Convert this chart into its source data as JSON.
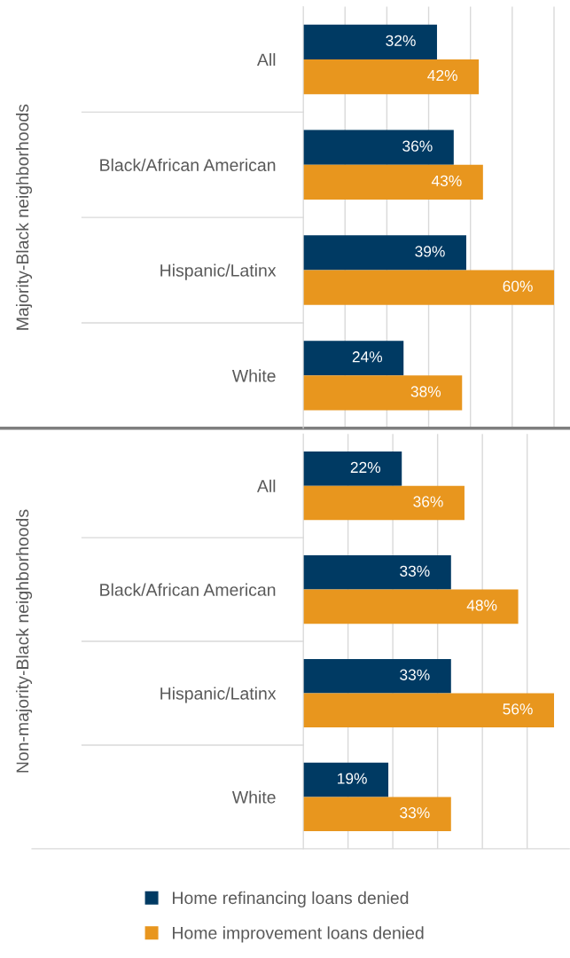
{
  "chart_data": [
    {
      "type": "bar",
      "orientation": "horizontal",
      "ylabel": "Majority-Black neighborhoods",
      "categories": [
        "All",
        "Black/African American",
        "Hispanic/Latinx",
        "White"
      ],
      "series": [
        {
          "color": "#003a63",
          "values": [
            32,
            36,
            39,
            24
          ],
          "value_labels": [
            "32%",
            "36%",
            "39%",
            "24%"
          ]
        },
        {
          "color": "#e8961e",
          "values": [
            42,
            43,
            60,
            38
          ],
          "value_labels": [
            "42%",
            "43%",
            "60%",
            "38%"
          ]
        }
      ],
      "grid": "x",
      "tick_labels": "y"
    },
    {
      "type": "bar",
      "orientation": "horizontal",
      "ylabel": "Non-majority-Black neighborhoods",
      "categories": [
        "All",
        "Black/African American",
        "Hispanic/Latinx",
        "White"
      ],
      "series": [
        {
          "name": "Home refinancing loans denied",
          "color": "#003a63",
          "values": [
            22,
            33,
            33,
            19
          ],
          "value_labels": [
            "22%",
            "33%",
            "33%",
            "19%"
          ]
        },
        {
          "name": "Home improvement loans denied",
          "color": "#e8961e",
          "values": [
            36,
            48,
            56,
            33
          ],
          "value_labels": [
            "36%",
            "48%",
            "56%",
            "33%"
          ]
        }
      ],
      "grid": "x",
      "tick_labels": "y",
      "legend": "bottom"
    }
  ]
}
